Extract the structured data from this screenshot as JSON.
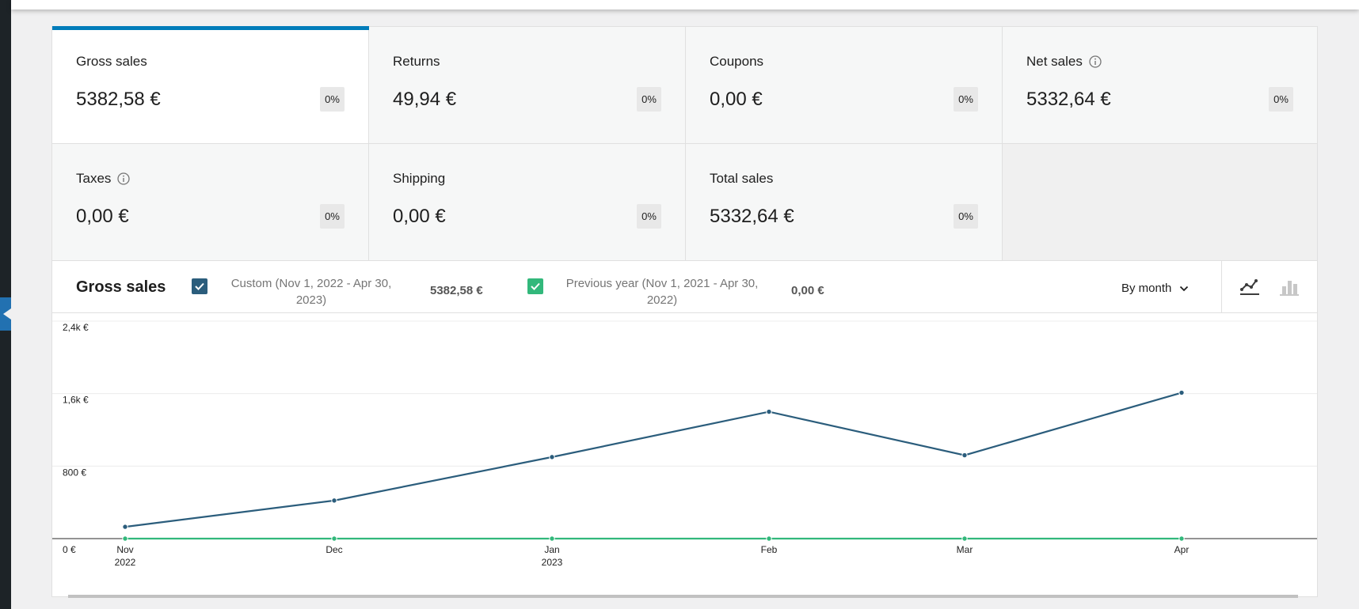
{
  "tiles": [
    {
      "label": "Gross sales",
      "value": "5382,58 €",
      "delta": "0%",
      "info": false
    },
    {
      "label": "Returns",
      "value": "49,94 €",
      "delta": "0%",
      "info": false
    },
    {
      "label": "Coupons",
      "value": "0,00 €",
      "delta": "0%",
      "info": false
    },
    {
      "label": "Net sales",
      "value": "5332,64 €",
      "delta": "0%",
      "info": true
    },
    {
      "label": "Taxes",
      "value": "0,00 €",
      "delta": "0%",
      "info": true
    },
    {
      "label": "Shipping",
      "value": "0,00 €",
      "delta": "0%",
      "info": false
    },
    {
      "label": "Total sales",
      "value": "5332,64 €",
      "delta": "0%",
      "info": false
    }
  ],
  "chart_header": {
    "title": "Gross sales",
    "legend": [
      {
        "label_line1": "Custom (Nov 1, 2022 - Apr 30,",
        "label_line2": "2023)",
        "total": "5382,58 €",
        "color": "#2b5d7c"
      },
      {
        "label_line1": "Previous year (Nov 1, 2021 - Apr 30,",
        "label_line2": "2022)",
        "total": "0,00 €",
        "color": "#32b87b"
      }
    ],
    "interval": "By month",
    "chart_type_options": [
      "line-chart-icon",
      "bar-chart-icon"
    ],
    "active_chart_type": "line-chart-icon"
  },
  "chart_data": {
    "type": "line",
    "categories": [
      "Nov 2022",
      "Dec",
      "Jan 2023",
      "Feb",
      "Mar",
      "Apr"
    ],
    "tick_labels": [
      [
        "Nov",
        "2022"
      ],
      [
        "Dec"
      ],
      [
        "Jan",
        "2023"
      ],
      [
        "Feb"
      ],
      [
        "Mar"
      ],
      [
        "Apr"
      ]
    ],
    "y_ticks": [
      "0 €",
      "800 €",
      "1,6k €",
      "2,4k €"
    ],
    "ylim": [
      0,
      2400
    ],
    "grid": true,
    "series": [
      {
        "name": "Custom (Nov 1, 2022 - Apr 30, 2023)",
        "color": "#2b5d7c",
        "values": [
          130,
          420,
          900,
          1400,
          920,
          1610
        ]
      },
      {
        "name": "Previous year (Nov 1, 2021 - Apr 30, 2022)",
        "color": "#32b87b",
        "values": [
          0,
          0,
          0,
          0,
          0,
          0
        ]
      }
    ]
  }
}
